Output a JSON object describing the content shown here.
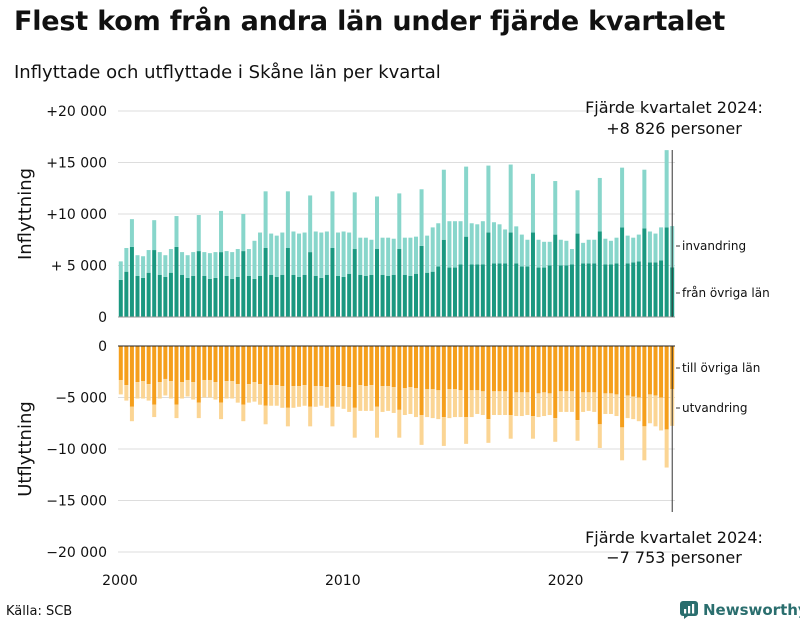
{
  "page": {
    "title": "Flest kom från andra län under fjärde kvartalet",
    "subtitle": "Inflyttade och utflyttade i Skåne län per kvartal",
    "source": "Källa: SCB",
    "brand": "Newsworthy",
    "brand_icon": "bar-chart-logo-icon"
  },
  "colors": {
    "from_other_counties": "#1a9880",
    "immigration": "#88d6cb",
    "to_other_counties": "#f59f1c",
    "emigration": "#fbd594",
    "grid": "#dddddd",
    "brand": "#2a6e6e"
  },
  "chart_data": {
    "type": "bar",
    "layout": "diverging stacked bars",
    "x": [
      "2000 K1",
      "2000 K2",
      "2000 K3",
      "2000 K4",
      "2001 K1",
      "2001 K2",
      "2001 K3",
      "2001 K4",
      "2002 K1",
      "2002 K2",
      "2002 K3",
      "2002 K4",
      "2003 K1",
      "2003 K2",
      "2003 K3",
      "2003 K4",
      "2004 K1",
      "2004 K2",
      "2004 K3",
      "2004 K4",
      "2005 K1",
      "2005 K2",
      "2005 K3",
      "2005 K4",
      "2006 K1",
      "2006 K2",
      "2006 K3",
      "2006 K4",
      "2007 K1",
      "2007 K2",
      "2007 K3",
      "2007 K4",
      "2008 K1",
      "2008 K2",
      "2008 K3",
      "2008 K4",
      "2009 K1",
      "2009 K2",
      "2009 K3",
      "2009 K4",
      "2010 K1",
      "2010 K2",
      "2010 K3",
      "2010 K4",
      "2011 K1",
      "2011 K2",
      "2011 K3",
      "2011 K4",
      "2012 K1",
      "2012 K2",
      "2012 K3",
      "2012 K4",
      "2013 K1",
      "2013 K2",
      "2013 K3",
      "2013 K4",
      "2014 K1",
      "2014 K2",
      "2014 K3",
      "2014 K4",
      "2015 K1",
      "2015 K2",
      "2015 K3",
      "2015 K4",
      "2016 K1",
      "2016 K2",
      "2016 K3",
      "2016 K4",
      "2017 K1",
      "2017 K2",
      "2017 K3",
      "2017 K4",
      "2018 K1",
      "2018 K2",
      "2018 K3",
      "2018 K4",
      "2019 K1",
      "2019 K2",
      "2019 K3",
      "2019 K4",
      "2020 K1",
      "2020 K2",
      "2020 K3",
      "2020 K4",
      "2021 K1",
      "2021 K2",
      "2021 K3",
      "2021 K4",
      "2022 K1",
      "2022 K2",
      "2022 K3",
      "2022 K4",
      "2023 K1",
      "2023 K2",
      "2023 K3",
      "2023 K4",
      "2024 K1",
      "2024 K2",
      "2024 K3",
      "2024 K4"
    ],
    "year_ticks": [
      {
        "label": "2000",
        "quarter_index": 0
      },
      {
        "label": "2010",
        "quarter_index": 40
      },
      {
        "label": "2020",
        "quarter_index": 80
      }
    ],
    "panels": [
      {
        "name": "inflyttning",
        "ylabel": "Inflyttning",
        "ylim": [
          0,
          20000
        ],
        "yticks": [
          {
            "value": 0,
            "label": "0"
          },
          {
            "value": 5000,
            "label": "+ 5 000"
          },
          {
            "value": 10000,
            "label": "+10 000"
          },
          {
            "value": 15000,
            "label": "+15 000"
          },
          {
            "value": 20000,
            "label": "+20 000"
          }
        ],
        "series": [
          {
            "name": "från övriga län",
            "color": "#1a9880",
            "values": [
              3600,
              4400,
              6800,
              4000,
              3800,
              4300,
              6500,
              4100,
              3900,
              4300,
              6800,
              4100,
              3800,
              4000,
              6400,
              4000,
              3700,
              3800,
              6300,
              4000,
              3700,
              3900,
              6400,
              4000,
              3700,
              4000,
              6700,
              4100,
              3900,
              4100,
              6700,
              4100,
              3900,
              4100,
              6300,
              4000,
              3800,
              4100,
              6700,
              4000,
              3900,
              4200,
              6600,
              4100,
              4000,
              4100,
              6600,
              4100,
              4000,
              4100,
              6600,
              4100,
              4000,
              4200,
              6900,
              4300,
              4400,
              4900,
              7500,
              4800,
              4800,
              5100,
              7800,
              5100,
              5100,
              5100,
              8200,
              5200,
              5200,
              5200,
              8200,
              5200,
              4900,
              4900,
              8200,
              4800,
              4800,
              5000,
              8000,
              5000,
              5000,
              5100,
              8100,
              5200,
              5200,
              5200,
              8300,
              5100,
              5100,
              5200,
              8700,
              5200,
              5300,
              5400,
              8600,
              5300,
              5300,
              5500,
              8700,
              4829
            ]
          },
          {
            "name": "invandring",
            "color": "#88d6cb",
            "values": [
              1800,
              2300,
              2700,
              2000,
              2100,
              2200,
              2900,
              2200,
              2100,
              2300,
              3000,
              2200,
              2200,
              2300,
              3500,
              2300,
              2500,
              2500,
              4000,
              2400,
              2600,
              2700,
              3600,
              2600,
              3700,
              4200,
              5500,
              4000,
              4000,
              4100,
              5500,
              4200,
              4200,
              4100,
              5500,
              4300,
              4400,
              4200,
              5500,
              4200,
              4400,
              4000,
              5500,
              3600,
              3700,
              3400,
              5100,
              3600,
              3700,
              3500,
              5400,
              3600,
              3700,
              3600,
              5500,
              3600,
              4300,
              4200,
              6800,
              4500,
              4500,
              4200,
              6800,
              4000,
              3900,
              4200,
              6500,
              4000,
              3800,
              3300,
              6600,
              3600,
              3100,
              2600,
              5700,
              2700,
              2500,
              2300,
              5200,
              2500,
              2400,
              1500,
              4200,
              2000,
              2300,
              2300,
              5200,
              2500,
              2300,
              2500,
              5800,
              2700,
              2400,
              2600,
              5700,
              3000,
              2800,
              3200,
              7500,
              3997
            ]
          }
        ],
        "annotation": {
          "text_line1": "Fjärde kvartalet 2024:",
          "text_line2": "+8 826 personer",
          "value": 8826
        },
        "legend": [
          "invandring",
          "från övriga län"
        ]
      },
      {
        "name": "utflyttning",
        "ylabel": "Utflyttning",
        "ylim": [
          -20000,
          0
        ],
        "yticks": [
          {
            "value": 0,
            "label": "0"
          },
          {
            "value": -5000,
            "label": "−5 000"
          },
          {
            "value": -10000,
            "label": "−10 000"
          },
          {
            "value": -15000,
            "label": "−15 000"
          },
          {
            "value": -20000,
            "label": "−20 000"
          }
        ],
        "series": [
          {
            "name": "till övriga län",
            "color": "#f59f1c",
            "values": [
              -3300,
              -3800,
              -5900,
              -3500,
              -3400,
              -3700,
              -5700,
              -3500,
              -3200,
              -3400,
              -5700,
              -3500,
              -3300,
              -3500,
              -5500,
              -3300,
              -3300,
              -3500,
              -5500,
              -3400,
              -3400,
              -3700,
              -5700,
              -3700,
              -3500,
              -3700,
              -5800,
              -3800,
              -3800,
              -3900,
              -6000,
              -3900,
              -3900,
              -3800,
              -5900,
              -3900,
              -3900,
              -4000,
              -5900,
              -3800,
              -3900,
              -4000,
              -6000,
              -3800,
              -3900,
              -3800,
              -5900,
              -3900,
              -3900,
              -4000,
              -6200,
              -4100,
              -4000,
              -4100,
              -6700,
              -4200,
              -4200,
              -4300,
              -6900,
              -4200,
              -4200,
              -4300,
              -6900,
              -4300,
              -4300,
              -4400,
              -7100,
              -4400,
              -4400,
              -4400,
              -6700,
              -4500,
              -4500,
              -4500,
              -6800,
              -4600,
              -4500,
              -4600,
              -7000,
              -4400,
              -4400,
              -4400,
              -7200,
              -4500,
              -4500,
              -4500,
              -7600,
              -4600,
              -4600,
              -4700,
              -7900,
              -4800,
              -4900,
              -5000,
              -7800,
              -4700,
              -4800,
              -5000,
              -8100,
              -4200
            ]
          },
          {
            "name": "utvandring",
            "color": "#fbd594",
            "values": [
              -1400,
              -1500,
              -1400,
              -1600,
              -1700,
              -1600,
              -1200,
              -1600,
              -1600,
              -1700,
              -1300,
              -1600,
              -1600,
              -1700,
              -1500,
              -1700,
              -1700,
              -1700,
              -1600,
              -1700,
              -1700,
              -1800,
              -1600,
              -1800,
              -1900,
              -2000,
              -1800,
              -2000,
              -2000,
              -2100,
              -1800,
              -2100,
              -2000,
              -2000,
              -1900,
              -2000,
              -1900,
              -2000,
              -1900,
              -2100,
              -2200,
              -2400,
              -2900,
              -2500,
              -2400,
              -2500,
              -3000,
              -2500,
              -2400,
              -2500,
              -2700,
              -2600,
              -2600,
              -2800,
              -2900,
              -2700,
              -2800,
              -2800,
              -2800,
              -2800,
              -2700,
              -2600,
              -2600,
              -2600,
              -2300,
              -2300,
              -2300,
              -2300,
              -2300,
              -2300,
              -2300,
              -2300,
              -2300,
              -2200,
              -2200,
              -2300,
              -2300,
              -2100,
              -2300,
              -2000,
              -2000,
              -2000,
              -2000,
              -1900,
              -1800,
              -1900,
              -2300,
              -2000,
              -2000,
              -2100,
              -3200,
              -2200,
              -2200,
              -2300,
              -3300,
              -2800,
              -3000,
              -3200,
              -3700,
              -3553
            ]
          }
        ],
        "annotation": {
          "text_line1": "Fjärde kvartalet 2024:",
          "text_line2": "−7 753 personer",
          "value": -7753
        },
        "legend": [
          "till övriga län",
          "utvandring"
        ]
      }
    ]
  }
}
